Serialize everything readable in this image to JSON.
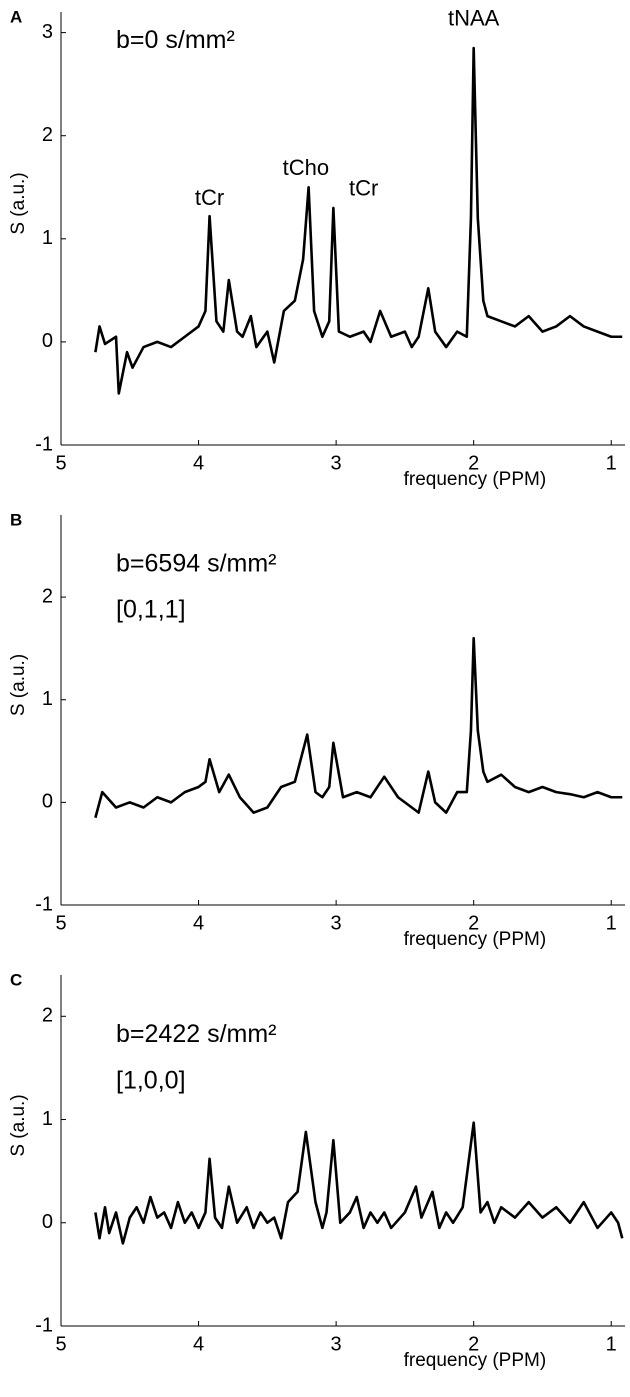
{
  "chart_data": [
    {
      "type": "line",
      "panel_label": "A",
      "x_label": "frequency (PPM)",
      "y_label": "S (a.u.)",
      "annotations": [
        "b=0 s/mm²",
        "tCr",
        "tCho",
        "tCr",
        "tNAA"
      ],
      "xlim": [
        5,
        0.9
      ],
      "ylim": [
        -1,
        3.2
      ],
      "xticks": [
        5,
        4,
        3,
        2,
        1
      ],
      "yticks": [
        -1,
        0,
        1,
        2,
        3
      ],
      "x": [
        4.75,
        4.72,
        4.68,
        4.6,
        4.58,
        4.52,
        4.48,
        4.4,
        4.3,
        4.2,
        4.1,
        4.0,
        3.95,
        3.92,
        3.87,
        3.82,
        3.78,
        3.72,
        3.68,
        3.62,
        3.58,
        3.5,
        3.45,
        3.38,
        3.3,
        3.24,
        3.2,
        3.16,
        3.1,
        3.05,
        3.02,
        2.98,
        2.9,
        2.8,
        2.75,
        2.68,
        2.6,
        2.5,
        2.45,
        2.4,
        2.33,
        2.28,
        2.2,
        2.12,
        2.05,
        2.02,
        2.0,
        1.97,
        1.93,
        1.9,
        1.8,
        1.7,
        1.6,
        1.5,
        1.4,
        1.3,
        1.2,
        1.1,
        1.0,
        0.92
      ],
      "series": [
        {
          "color": "#000000",
          "values": [
            -0.1,
            0.15,
            -0.02,
            0.05,
            -0.5,
            -0.1,
            -0.25,
            -0.05,
            0.0,
            -0.05,
            0.05,
            0.15,
            0.3,
            1.22,
            0.2,
            0.1,
            0.6,
            0.1,
            0.05,
            0.25,
            -0.05,
            0.1,
            -0.2,
            0.3,
            0.4,
            0.8,
            1.5,
            0.3,
            0.05,
            0.2,
            1.3,
            0.1,
            0.05,
            0.1,
            0.0,
            0.3,
            0.05,
            0.1,
            -0.05,
            0.05,
            0.52,
            0.1,
            -0.05,
            0.1,
            0.05,
            1.2,
            2.85,
            1.2,
            0.4,
            0.25,
            0.2,
            0.15,
            0.25,
            0.1,
            0.15,
            0.25,
            0.15,
            0.1,
            0.05,
            0.05
          ]
        }
      ]
    },
    {
      "type": "line",
      "panel_label": "B",
      "x_label": "frequency (PPM)",
      "y_label": "S (a.u.)",
      "annotations": [
        "b=6594 s/mm²",
        "[0,1,1]"
      ],
      "xlim": [
        5,
        0.9
      ],
      "ylim": [
        -1,
        2.8
      ],
      "xticks": [
        5,
        4,
        3,
        2,
        1
      ],
      "yticks": [
        -1,
        0,
        1,
        2
      ],
      "x": [
        4.75,
        4.7,
        4.6,
        4.5,
        4.4,
        4.3,
        4.2,
        4.1,
        4.0,
        3.95,
        3.92,
        3.85,
        3.78,
        3.7,
        3.6,
        3.5,
        3.4,
        3.3,
        3.21,
        3.15,
        3.1,
        3.05,
        3.02,
        2.95,
        2.85,
        2.75,
        2.65,
        2.55,
        2.45,
        2.4,
        2.33,
        2.28,
        2.2,
        2.12,
        2.05,
        2.02,
        2.0,
        1.97,
        1.93,
        1.9,
        1.8,
        1.7,
        1.6,
        1.5,
        1.4,
        1.3,
        1.2,
        1.1,
        1.0,
        0.92
      ],
      "series": [
        {
          "color": "#000000",
          "values": [
            -0.15,
            0.1,
            -0.05,
            0.0,
            -0.05,
            0.05,
            0.0,
            0.1,
            0.15,
            0.2,
            0.42,
            0.1,
            0.27,
            0.05,
            -0.1,
            -0.05,
            0.15,
            0.2,
            0.66,
            0.1,
            0.05,
            0.15,
            0.58,
            0.05,
            0.1,
            0.05,
            0.25,
            0.05,
            -0.05,
            -0.1,
            0.3,
            0.0,
            -0.1,
            0.1,
            0.1,
            0.7,
            1.6,
            0.7,
            0.3,
            0.2,
            0.27,
            0.15,
            0.1,
            0.15,
            0.1,
            0.08,
            0.05,
            0.1,
            0.05,
            0.05
          ]
        }
      ]
    },
    {
      "type": "line",
      "panel_label": "C",
      "x_label": "frequency (PPM)",
      "y_label": "S (a.u.)",
      "annotations": [
        "b=2422 s/mm²",
        "[1,0,0]"
      ],
      "xlim": [
        5,
        0.9
      ],
      "ylim": [
        -1,
        2.4
      ],
      "xticks": [
        5,
        4,
        3,
        2,
        1
      ],
      "yticks": [
        -1,
        0,
        1,
        2
      ],
      "x": [
        4.75,
        4.72,
        4.68,
        4.65,
        4.6,
        4.55,
        4.5,
        4.45,
        4.4,
        4.35,
        4.3,
        4.25,
        4.2,
        4.15,
        4.1,
        4.05,
        4.0,
        3.95,
        3.92,
        3.88,
        3.83,
        3.78,
        3.72,
        3.65,
        3.6,
        3.55,
        3.5,
        3.45,
        3.4,
        3.35,
        3.28,
        3.22,
        3.15,
        3.1,
        3.07,
        3.02,
        2.97,
        2.9,
        2.85,
        2.8,
        2.75,
        2.7,
        2.65,
        2.6,
        2.5,
        2.42,
        2.38,
        2.3,
        2.25,
        2.2,
        2.15,
        2.08,
        2.0,
        1.95,
        1.9,
        1.85,
        1.8,
        1.7,
        1.6,
        1.5,
        1.4,
        1.3,
        1.2,
        1.1,
        1.0,
        0.95,
        0.92
      ],
      "series": [
        {
          "color": "#000000",
          "values": [
            0.1,
            -0.15,
            0.15,
            -0.1,
            0.1,
            -0.2,
            0.05,
            0.15,
            0.0,
            0.25,
            0.05,
            0.1,
            -0.05,
            0.2,
            0.0,
            0.1,
            -0.05,
            0.1,
            0.62,
            0.05,
            -0.05,
            0.35,
            0.0,
            0.15,
            -0.05,
            0.1,
            0.0,
            0.05,
            -0.15,
            0.2,
            0.3,
            0.88,
            0.2,
            -0.05,
            0.1,
            0.8,
            0.0,
            0.1,
            0.25,
            -0.05,
            0.1,
            0.0,
            0.1,
            -0.05,
            0.1,
            0.35,
            0.05,
            0.3,
            -0.05,
            0.1,
            0.0,
            0.15,
            0.97,
            0.1,
            0.2,
            0.0,
            0.15,
            0.05,
            0.2,
            0.05,
            0.15,
            0.0,
            0.2,
            -0.05,
            0.1,
            0.0,
            -0.15
          ]
        }
      ]
    }
  ]
}
